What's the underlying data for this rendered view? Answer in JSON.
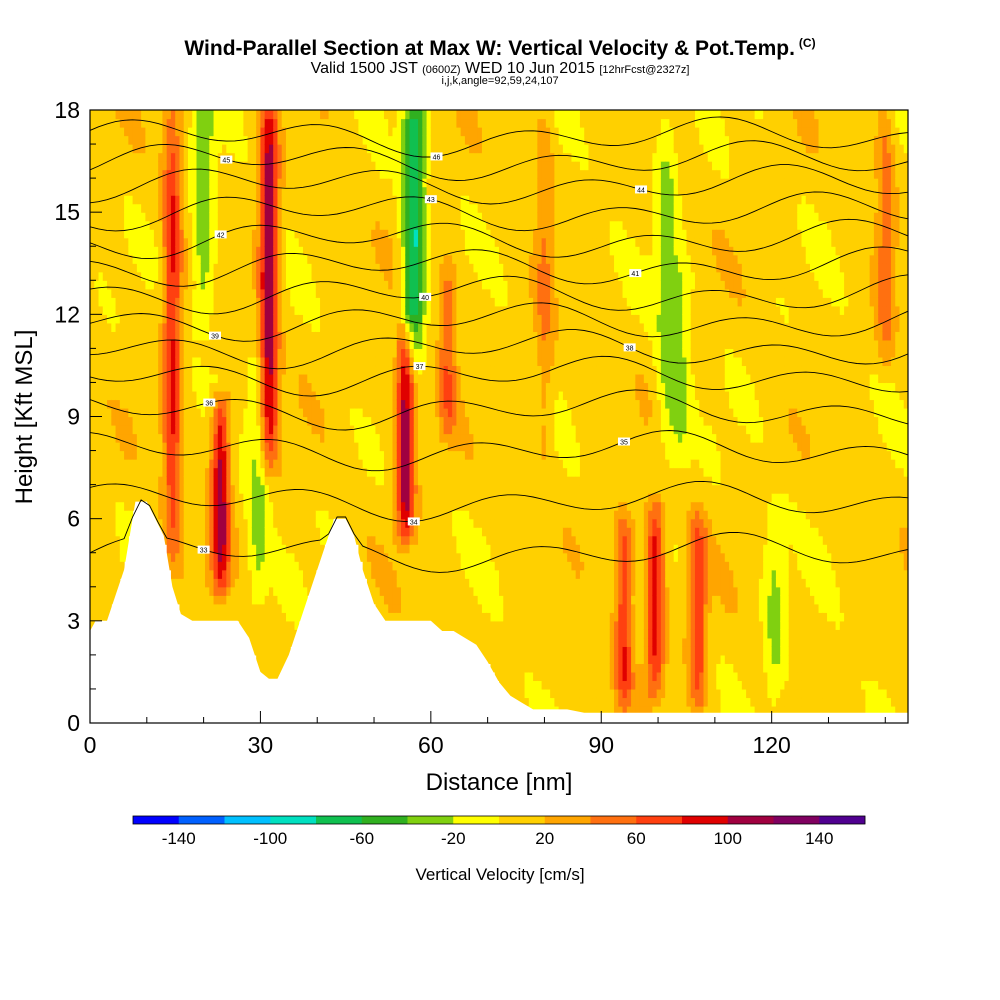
{
  "chart_data": {
    "type": "heatmap",
    "title": "Wind-Parallel Section at Max W: Vertical Velocity & Pot.Temp.",
    "title_mark": "(C)",
    "subtitle_valid": "Valid 1500 JST",
    "subtitle_utc": "(0600Z)",
    "subtitle_date": "WED 10 Jun 2015",
    "subtitle_fcst": "[12hrFcst@2327z]",
    "subtitle_grid": "i,j,k,angle=92,59,24,107",
    "xlabel": "Distance [nm]",
    "ylabel": "Height [Kft MSL]",
    "xlim": [
      0,
      144
    ],
    "ylim": [
      0,
      18
    ],
    "x_ticks": [
      "0",
      "30",
      "60",
      "90",
      "120"
    ],
    "y_ticks": [
      "0",
      "3",
      "6",
      "9",
      "12",
      "15",
      "18"
    ],
    "colorbar": {
      "label": "Vertical Velocity [cm/s]",
      "ticks": [
        "-140",
        "-100",
        "-60",
        "-20",
        "20",
        "60",
        "100",
        "140"
      ],
      "colors": [
        "#0000ff",
        "#0060ff",
        "#00c0ff",
        "#00e0c0",
        "#10c050",
        "#30b020",
        "#80d010",
        "#ffff00",
        "#ffd000",
        "#ffa500",
        "#ff7010",
        "#ff4010",
        "#e00000",
        "#a00040",
        "#800060",
        "#500090"
      ]
    },
    "updrafts": [
      {
        "x": 14.5,
        "z0": 5,
        "z1": 18,
        "w": 75
      },
      {
        "x": 23,
        "z0": 4.5,
        "z1": 9,
        "w": 100
      },
      {
        "x": 31.5,
        "z0": 8,
        "z1": 18,
        "w": 110
      },
      {
        "x": 55.5,
        "z0": 6,
        "z1": 11,
        "w": 110
      },
      {
        "x": 63,
        "z0": 9,
        "z1": 13,
        "w": 50
      },
      {
        "x": 80,
        "z0": 8,
        "z1": 18,
        "w": 30
      },
      {
        "x": 94,
        "z0": 1,
        "z1": 5.5,
        "w": 70
      },
      {
        "x": 99.5,
        "z0": 1.5,
        "z1": 6,
        "w": 85
      },
      {
        "x": 107,
        "z0": 1,
        "z1": 5.5,
        "w": 65
      },
      {
        "x": 140,
        "z0": 11,
        "z1": 18,
        "w": 40
      }
    ],
    "downdrafts": [
      {
        "x": 20,
        "z0": 12,
        "z1": 18,
        "w": -45
      },
      {
        "x": 29.5,
        "z0": 4,
        "z1": 10,
        "w": -35
      },
      {
        "x": 57,
        "z0": 11,
        "z1": 18,
        "w": -90
      },
      {
        "x": 101.5,
        "z0": 8,
        "z1": 18,
        "w": -35
      },
      {
        "x": 120.5,
        "z0": 1,
        "z1": 6,
        "w": -30
      },
      {
        "x": 104,
        "z0": 8,
        "z1": 13,
        "w": -30
      }
    ],
    "terrain": {
      "x": [
        0,
        1,
        3,
        6,
        8,
        10,
        11.5,
        13,
        14.5,
        16,
        18,
        20,
        22,
        24,
        26,
        28,
        30,
        31.5,
        33,
        35,
        37,
        39,
        41,
        43,
        45,
        46.5,
        48,
        50,
        52,
        54,
        56,
        58,
        60,
        62,
        64,
        66,
        68,
        70,
        72,
        74,
        76,
        78,
        84,
        87,
        90,
        100,
        110,
        120,
        130,
        144
      ],
      "z": [
        2.7,
        3.0,
        3.0,
        4.5,
        6.5,
        6.5,
        6.0,
        5.5,
        4.0,
        3.2,
        3.0,
        3.0,
        3.0,
        3.0,
        3.0,
        2.5,
        1.5,
        1.3,
        1.3,
        2.0,
        3.0,
        4.0,
        5.0,
        6.0,
        6.0,
        5.5,
        4.5,
        3.5,
        3.0,
        3.0,
        3.0,
        3.0,
        3.0,
        2.7,
        2.7,
        2.5,
        2.3,
        1.8,
        1.2,
        0.8,
        0.6,
        0.4,
        0.4,
        0.3,
        0.3,
        0.3,
        0.3,
        0.3,
        0.3,
        0.3
      ]
    },
    "theta_levels": [
      {
        "z": 5.0,
        "label": "33"
      },
      {
        "z": 6.5,
        "label": "34"
      },
      {
        "z": 8.0,
        "label": "35"
      },
      {
        "z": 9.2,
        "label": "36"
      },
      {
        "z": 10.2,
        "label": "37"
      },
      {
        "z": 11.0,
        "label": "38"
      },
      {
        "z": 11.8,
        "label": "39"
      },
      {
        "z": 12.6,
        "label": "40"
      },
      {
        "z": 13.4,
        "label": "41"
      },
      {
        "z": 14.2,
        "label": "42"
      },
      {
        "z": 15.0,
        "label": "43"
      },
      {
        "z": 15.8,
        "label": "44"
      },
      {
        "z": 16.5,
        "label": "45"
      },
      {
        "z": 17.2,
        "label": "46"
      }
    ]
  }
}
